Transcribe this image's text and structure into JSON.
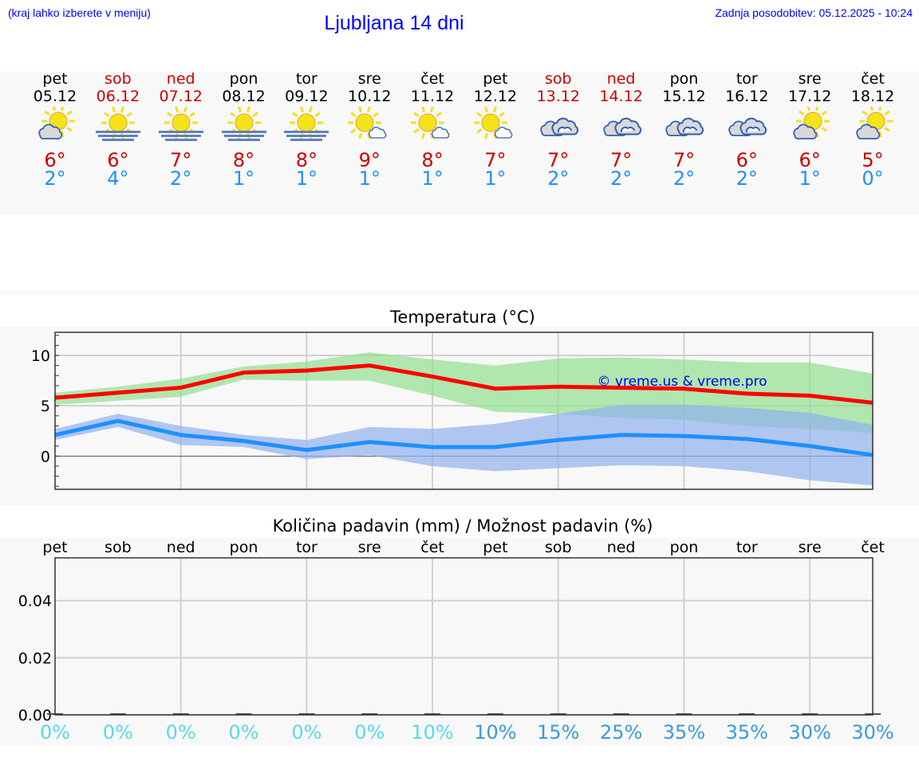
{
  "header": {
    "hint": "(kraj lahko izberete v meniju)",
    "title": "Ljubljana 14 dni",
    "updated": "Zadnja posodobitev: 05.12.2025 - 10:24"
  },
  "colors": {
    "weekday": "#000000",
    "weekend": "#cc0000",
    "tmax": "#cc0000",
    "tmin": "#1e90ff",
    "pct_low": "#5bd8ec",
    "pct_high": "#3a9ad9"
  },
  "days": [
    {
      "name": "pet",
      "date": "05.12",
      "weekend": false,
      "icon": "partly-cloudy-icon",
      "tmax": "6°",
      "tmin": "2°"
    },
    {
      "name": "sob",
      "date": "06.12",
      "weekend": true,
      "icon": "sun-fog-icon",
      "tmax": "6°",
      "tmin": "4°"
    },
    {
      "name": "ned",
      "date": "07.12",
      "weekend": true,
      "icon": "sun-fog-icon",
      "tmax": "7°",
      "tmin": "2°"
    },
    {
      "name": "pon",
      "date": "08.12",
      "weekend": false,
      "icon": "sun-fog-icon",
      "tmax": "8°",
      "tmin": "1°"
    },
    {
      "name": "tor",
      "date": "09.12",
      "weekend": false,
      "icon": "sun-fog-icon",
      "tmax": "8°",
      "tmin": "1°"
    },
    {
      "name": "sre",
      "date": "10.12",
      "weekend": false,
      "icon": "mostly-sunny-icon",
      "tmax": "9°",
      "tmin": "1°"
    },
    {
      "name": "čet",
      "date": "11.12",
      "weekend": false,
      "icon": "mostly-sunny-icon",
      "tmax": "8°",
      "tmin": "1°"
    },
    {
      "name": "pet",
      "date": "12.12",
      "weekend": false,
      "icon": "mostly-sunny-icon",
      "tmax": "7°",
      "tmin": "1°"
    },
    {
      "name": "sob",
      "date": "13.12",
      "weekend": true,
      "icon": "cloudy-icon",
      "tmax": "7°",
      "tmin": "2°"
    },
    {
      "name": "ned",
      "date": "14.12",
      "weekend": true,
      "icon": "cloudy-icon",
      "tmax": "7°",
      "tmin": "2°"
    },
    {
      "name": "pon",
      "date": "15.12",
      "weekend": false,
      "icon": "cloudy-icon",
      "tmax": "7°",
      "tmin": "2°"
    },
    {
      "name": "tor",
      "date": "16.12",
      "weekend": false,
      "icon": "cloudy-icon",
      "tmax": "6°",
      "tmin": "2°"
    },
    {
      "name": "sre",
      "date": "17.12",
      "weekend": false,
      "icon": "partly-cloudy-icon",
      "tmax": "6°",
      "tmin": "1°"
    },
    {
      "name": "čet",
      "date": "18.12",
      "weekend": false,
      "icon": "partly-cloudy-icon",
      "tmax": "5°",
      "tmin": "0°"
    }
  ],
  "chart_data": [
    {
      "type": "line",
      "title": "Temperatura (°C)",
      "ylim": [
        -3.3,
        12.3
      ],
      "yticks": [
        "10",
        "5",
        "0"
      ],
      "ytick_values": [
        10,
        5,
        0
      ],
      "grid": true,
      "watermark": "© vreme.us & vreme.pro",
      "series": [
        {
          "values": [
            5.8,
            6.3,
            6.8,
            8.3,
            8.5,
            9.0,
            7.9,
            6.7,
            6.9,
            6.8,
            6.7,
            6.2,
            6.0,
            5.3
          ],
          "band_upper": [
            6.3,
            6.9,
            7.7,
            8.9,
            9.4,
            10.3,
            9.6,
            9.0,
            9.7,
            9.8,
            9.6,
            9.3,
            9.3,
            8.2
          ],
          "band_lower": [
            5.1,
            5.5,
            5.9,
            7.6,
            7.5,
            7.5,
            6.0,
            4.4,
            4.2,
            3.8,
            3.6,
            3.0,
            2.7,
            2.3
          ],
          "color": "#ff0000",
          "band_color": "#90e090"
        },
        {
          "values": [
            2.1,
            3.5,
            2.1,
            1.5,
            0.6,
            1.4,
            0.9,
            0.9,
            1.6,
            2.1,
            2.0,
            1.7,
            1.0,
            0.1
          ],
          "band_upper": [
            2.7,
            4.2,
            3.0,
            2.1,
            1.6,
            2.9,
            2.7,
            3.2,
            4.2,
            5.1,
            5.1,
            4.8,
            4.3,
            3.1
          ],
          "band_lower": [
            1.6,
            2.9,
            1.1,
            0.9,
            -0.3,
            0.1,
            -1.0,
            -1.5,
            -1.2,
            -0.9,
            -1.0,
            -1.5,
            -2.4,
            -2.9
          ],
          "color": "#1e90ff",
          "band_color": "#90b0ee"
        }
      ]
    },
    {
      "type": "bar",
      "title": "Količina padavin (mm) / Možnost padavin (%)",
      "ylim": [
        0,
        0.055
      ],
      "yticks": [
        "0.04",
        "0.02",
        "0.00"
      ],
      "ytick_values": [
        0.04,
        0.02,
        0
      ],
      "grid": true,
      "categories": [
        "pet",
        "sob",
        "ned",
        "pon",
        "tor",
        "sre",
        "čet",
        "pet",
        "sob",
        "ned",
        "pon",
        "tor",
        "sre",
        "čet"
      ],
      "values": [
        0,
        0,
        0,
        0,
        0,
        0,
        0,
        0,
        0,
        0,
        0,
        0,
        0,
        0
      ],
      "probability": [
        "0%",
        "0%",
        "0%",
        "0%",
        "0%",
        "0%",
        "10%",
        "10%",
        "15%",
        "25%",
        "35%",
        "35%",
        "30%",
        "30%"
      ],
      "probability_dark": [
        false,
        false,
        false,
        false,
        false,
        false,
        false,
        true,
        true,
        true,
        true,
        true,
        true,
        true
      ]
    }
  ]
}
